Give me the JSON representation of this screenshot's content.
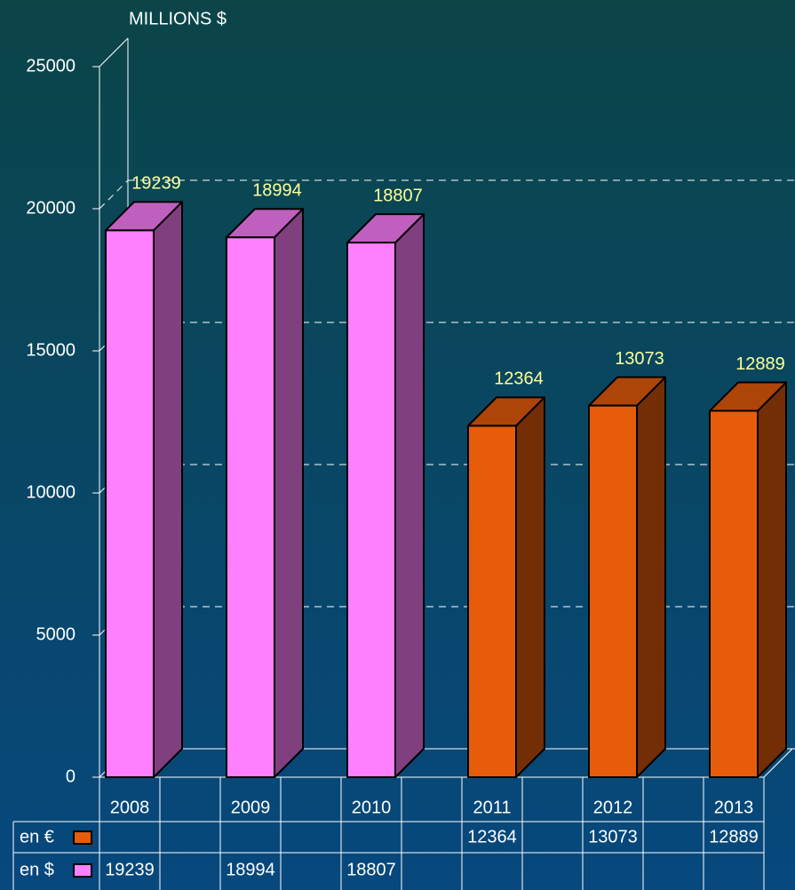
{
  "chart_data": {
    "type": "bar3d",
    "title": "MILLIONS $",
    "categories": [
      "2008",
      "2009",
      "2010",
      "2011",
      "2012",
      "2013"
    ],
    "series": [
      {
        "name": "en €",
        "color": "#e65c0a",
        "values": [
          null,
          null,
          null,
          12364,
          13073,
          12889
        ]
      },
      {
        "name": "en $",
        "color": "#ff80ff",
        "values": [
          19239,
          18994,
          18807,
          null,
          null,
          null
        ]
      }
    ],
    "ylim": [
      0,
      25000
    ],
    "yticks": [
      0,
      5000,
      10000,
      15000,
      20000,
      25000
    ],
    "grid": true
  }
}
